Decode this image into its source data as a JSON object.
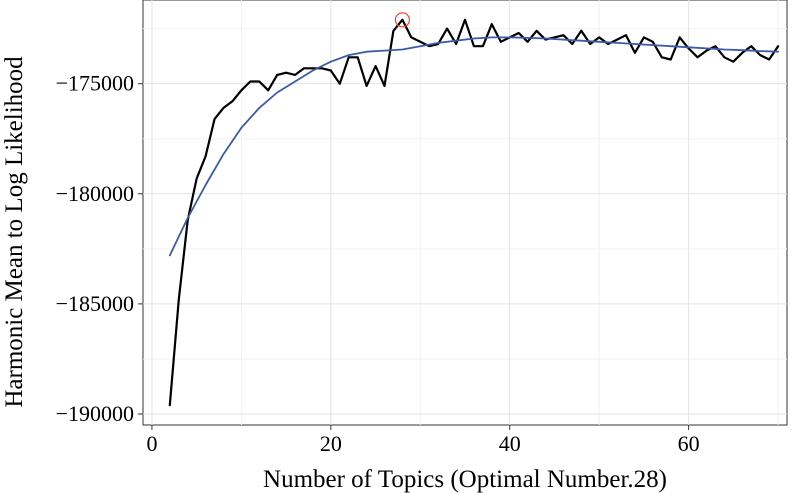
{
  "chart_data": {
    "type": "line",
    "xlabel": "Number of Topics (Optimal Number.28)",
    "ylabel": "Harmonic Mean to Log Likelihood",
    "xlim": [
      -1,
      71
    ],
    "ylim": [
      -190500,
      -171200
    ],
    "x_ticks": [
      0,
      20,
      40,
      60
    ],
    "y_ticks": [
      -190000,
      -185000,
      -180000,
      -175000
    ],
    "x_tick_labels": [
      "0",
      "20",
      "40",
      "60"
    ],
    "y_tick_labels": [
      "−190000",
      "−185000",
      "−180000",
      "−175000"
    ],
    "grid": true,
    "series": [
      {
        "role": "observed",
        "color": "#000000",
        "x": [
          2,
          3,
          4,
          5,
          6,
          7,
          8,
          9,
          10,
          11,
          12,
          13,
          14,
          15,
          16,
          17,
          18,
          19,
          20,
          21,
          22,
          23,
          24,
          25,
          26,
          27,
          28,
          29,
          30,
          31,
          32,
          33,
          34,
          35,
          36,
          37,
          38,
          39,
          40,
          41,
          42,
          43,
          44,
          45,
          46,
          47,
          48,
          49,
          50,
          51,
          52,
          53,
          54,
          55,
          56,
          57,
          58,
          59,
          60,
          61,
          62,
          63,
          64,
          65,
          66,
          67,
          68,
          69,
          70
        ],
        "values": [
          -189600,
          -184800,
          -181200,
          -179300,
          -178300,
          -176600,
          -176100,
          -175800,
          -175300,
          -174900,
          -174900,
          -175300,
          -174600,
          -174500,
          -174600,
          -174300,
          -174300,
          -174300,
          -174400,
          -175000,
          -173800,
          -173800,
          -175100,
          -174200,
          -175100,
          -172600,
          -172100,
          -172900,
          -173100,
          -173300,
          -173200,
          -172500,
          -173200,
          -172100,
          -173300,
          -173300,
          -172300,
          -173100,
          -172900,
          -172700,
          -173100,
          -172600,
          -173000,
          -172900,
          -172800,
          -173200,
          -172600,
          -173200,
          -172900,
          -173200,
          -173000,
          -172800,
          -173600,
          -172900,
          -173100,
          -173800,
          -173900,
          -172900,
          -173400,
          -173800,
          -173500,
          -173300,
          -173800,
          -174000,
          -173600,
          -173300,
          -173700,
          -173900,
          -173300
        ]
      },
      {
        "role": "smoothed",
        "color": "#3b5ba8",
        "x": [
          2,
          4,
          6,
          8,
          10,
          12,
          14,
          16,
          18,
          20,
          22,
          24,
          26,
          28,
          30,
          32,
          34,
          36,
          38,
          40,
          42,
          44,
          46,
          48,
          50,
          52,
          54,
          56,
          58,
          60,
          62,
          64,
          66,
          68,
          70
        ],
        "values": [
          -182800,
          -181100,
          -179600,
          -178200,
          -177000,
          -176100,
          -175400,
          -174900,
          -174400,
          -174000,
          -173700,
          -173550,
          -173500,
          -173450,
          -173300,
          -173150,
          -173050,
          -172950,
          -172900,
          -172900,
          -172920,
          -172950,
          -173000,
          -173050,
          -173100,
          -173150,
          -173200,
          -173250,
          -173300,
          -173350,
          -173400,
          -173450,
          -173480,
          -173520,
          -173550
        ]
      }
    ],
    "highlight": {
      "x": 28,
      "y": -172100,
      "color": "#ff3b30",
      "shape": "circle"
    }
  }
}
